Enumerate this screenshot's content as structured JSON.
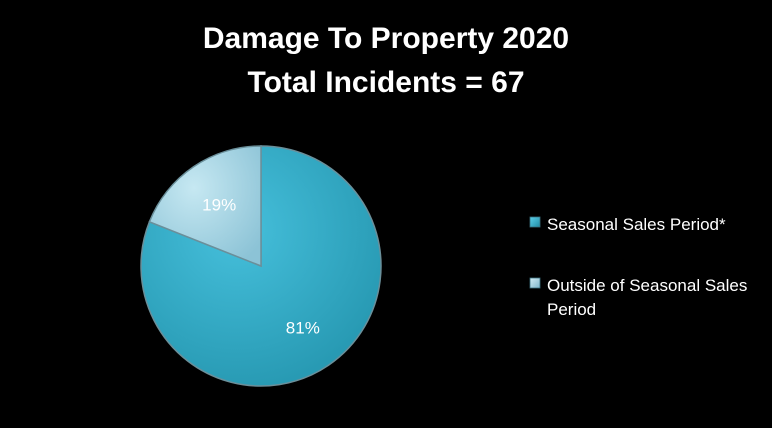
{
  "chart_data": {
    "type": "pie",
    "title": "Damage To Property 2020",
    "subtitle": "Total Incidents = 67",
    "slices": [
      {
        "label": "Seasonal Sales Period*",
        "value": 81,
        "value_label": "81%",
        "color": "#31a9c4"
      },
      {
        "label": "Outside of Seasonal Sales Period",
        "value": 19,
        "value_label": "19%",
        "color": "#a9d7e6"
      }
    ],
    "legend": {
      "position": "right",
      "entries": [
        {
          "lines": [
            "Seasonal Sales Period*"
          ],
          "color": "#31a9c4"
        },
        {
          "lines": [
            "Outside of Seasonal Sales",
            "Period"
          ],
          "color": "#a9d7e6"
        }
      ]
    },
    "background": "#000000"
  }
}
